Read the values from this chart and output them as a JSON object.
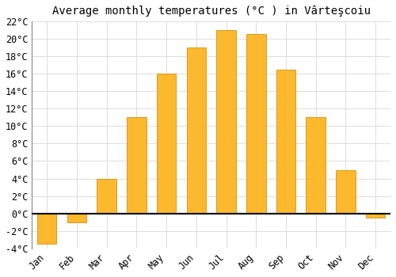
{
  "months": [
    "Jan",
    "Feb",
    "Mar",
    "Apr",
    "May",
    "Jun",
    "Jul",
    "Aug",
    "Sep",
    "Oct",
    "Nov",
    "Dec"
  ],
  "values": [
    -3.5,
    -1.0,
    4.0,
    11.0,
    16.0,
    19.0,
    21.0,
    20.5,
    16.5,
    11.0,
    5.0,
    -0.5
  ],
  "bar_color": "#FDB92E",
  "bar_edge_color": "#D4910A",
  "background_color": "#FFFFFF",
  "plot_bg_color": "#FFFFFF",
  "title": "Average monthly temperatures (°C ) in Vârteşcoiu",
  "ylim": [
    -4,
    22
  ],
  "yticks": [
    -4,
    -2,
    0,
    2,
    4,
    6,
    8,
    10,
    12,
    14,
    16,
    18,
    20,
    22
  ],
  "grid_color": "#DDDDDD",
  "title_fontsize": 10,
  "tick_fontsize": 8.5
}
